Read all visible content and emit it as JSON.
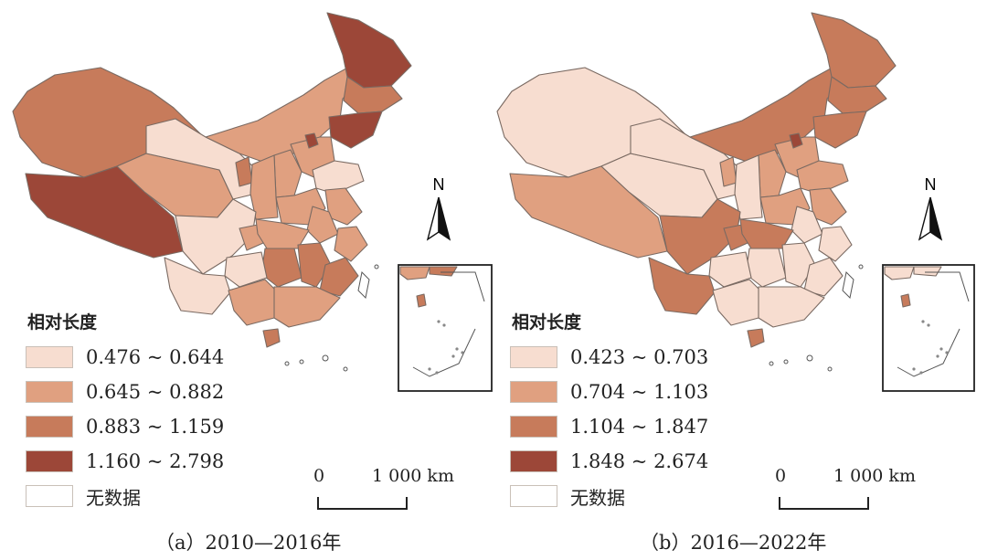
{
  "legend_title": "相对长度",
  "no_data_label": "无数据",
  "north_label": "N",
  "scale": {
    "zero": "0",
    "distance": "1 000 km"
  },
  "colors": {
    "class1": "#f7ddd0",
    "class2": "#e0a080",
    "class3": "#c77b5b",
    "class4": "#9c4738",
    "no_data": "#ffffff"
  },
  "panels": [
    {
      "caption": "（a）2010—2016年",
      "legend": [
        {
          "label": "0.476 ~ 0.644",
          "color": "#f7ddd0"
        },
        {
          "label": "0.645 ~ 0.882",
          "color": "#e0a080"
        },
        {
          "label": "0.883 ~ 1.159",
          "color": "#c77b5b"
        },
        {
          "label": "1.160 ~ 2.798",
          "color": "#9c4738"
        }
      ],
      "region_classes": {
        "xinjiang": 3,
        "tibet": 4,
        "qinghai": 2,
        "gansu": 1,
        "inner-mongolia": 2,
        "heilongjiang": 4,
        "jilin": 3,
        "liaoning": 4,
        "beijing": 4,
        "hebei": 2,
        "shandong": 1,
        "shanxi": 2,
        "shaanxi": 2,
        "ningxia": 3,
        "henan": 2,
        "sichuan": 1,
        "chongqing": 2,
        "hubei": 2,
        "anhui": 2,
        "jiangsu": 2,
        "zhejiang": 2,
        "yunnan": 1,
        "guizhou": 1,
        "hunan": 3,
        "jiangxi": 3,
        "fujian": 3,
        "guangxi": 2,
        "guangdong": 2,
        "hainan": 3
      }
    },
    {
      "caption": "（b）2016—2022年",
      "legend": [
        {
          "label": "0.423 ~ 0.703",
          "color": "#f7ddd0"
        },
        {
          "label": "0.704 ~ 1.103",
          "color": "#e0a080"
        },
        {
          "label": "1.104 ~ 1.847",
          "color": "#c77b5b"
        },
        {
          "label": "1.848 ~ 2.674",
          "color": "#9c4738"
        }
      ],
      "region_classes": {
        "xinjiang": 1,
        "tibet": 2,
        "qinghai": 1,
        "gansu": 1,
        "inner-mongolia": 3,
        "heilongjiang": 3,
        "jilin": 3,
        "liaoning": 3,
        "beijing": 4,
        "hebei": 2,
        "shandong": 2,
        "shanxi": 2,
        "shaanxi": 1,
        "ningxia": 2,
        "henan": 2,
        "sichuan": 3,
        "chongqing": 3,
        "hubei": 3,
        "anhui": 1,
        "jiangsu": 2,
        "zhejiang": 1,
        "yunnan": 3,
        "guizhou": 1,
        "hunan": 1,
        "jiangxi": 1,
        "fujian": 1,
        "guangxi": 1,
        "guangdong": 1,
        "hainan": 3
      }
    }
  ]
}
